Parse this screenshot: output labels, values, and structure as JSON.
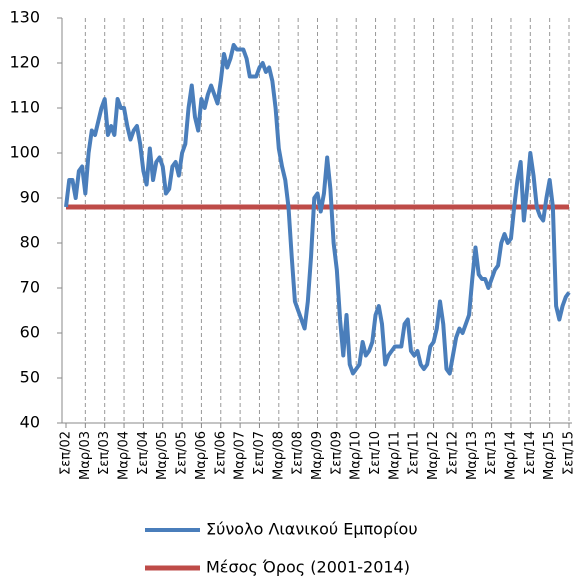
{
  "chart_data": {
    "type": "line",
    "categories": [
      "Σεπ/02",
      null,
      null,
      null,
      null,
      null,
      "Μαρ/03",
      null,
      null,
      null,
      null,
      null,
      "Σεπ/03",
      null,
      null,
      null,
      null,
      null,
      "Μαρ/04",
      null,
      null,
      null,
      null,
      null,
      "Σεπ/04",
      null,
      null,
      null,
      null,
      null,
      "Μαρ/05",
      null,
      null,
      null,
      null,
      null,
      "Σεπ/05",
      null,
      null,
      null,
      null,
      null,
      "Μαρ/06",
      null,
      null,
      null,
      null,
      null,
      "Σεπ/06",
      null,
      null,
      null,
      null,
      null,
      "Μαρ/07",
      null,
      null,
      null,
      null,
      null,
      "Σεπ/07",
      null,
      null,
      null,
      null,
      null,
      "Μαρ/08",
      null,
      null,
      null,
      null,
      null,
      "Σεπ/08",
      null,
      null,
      null,
      null,
      null,
      "Μαρ/09",
      null,
      null,
      null,
      null,
      null,
      "Σεπ/09",
      null,
      null,
      null,
      null,
      null,
      "Μαρ/10",
      null,
      null,
      null,
      null,
      null,
      "Σεπ/10",
      null,
      null,
      null,
      null,
      null,
      "Μαρ/11",
      null,
      null,
      null,
      null,
      null,
      "Σεπ/11",
      null,
      null,
      null,
      null,
      null,
      "Μαρ/12",
      null,
      null,
      null,
      null,
      null,
      "Σεπ/12",
      null,
      null,
      null,
      null,
      null,
      "Μαρ/13",
      null,
      null,
      null,
      null,
      null,
      "Σεπ/13",
      null,
      null,
      null,
      null,
      null,
      "Μαρ/14",
      null,
      null,
      null,
      null,
      null,
      "Σεπ/14",
      null,
      null,
      null,
      null,
      null,
      "Μαρ/15",
      null,
      null,
      null,
      null,
      null,
      "Σεπ/15"
    ],
    "series": [
      {
        "name": "Σύνολο Λιανικού Εμπορίου",
        "color": "#4a7ebb",
        "values": [
          88,
          94,
          94,
          90,
          96,
          97,
          91,
          100,
          105,
          104,
          107,
          110,
          112,
          104,
          106,
          104,
          112,
          110,
          110,
          106,
          103,
          105,
          106,
          102,
          96,
          93,
          101,
          94,
          98,
          99,
          97,
          91,
          92,
          97,
          98,
          95,
          100,
          102,
          110,
          115,
          108,
          105,
          112,
          110,
          113,
          115,
          113,
          111,
          116,
          122,
          119,
          121,
          124,
          123,
          123,
          123,
          121,
          117,
          117,
          117,
          119,
          120,
          118,
          119,
          116,
          110,
          101,
          97,
          94,
          88,
          77,
          67,
          65,
          63,
          61,
          67,
          77,
          90,
          91,
          87,
          91,
          99,
          92,
          80,
          74,
          63,
          55,
          64,
          53,
          51,
          52,
          53,
          58,
          55,
          56,
          58,
          64,
          66,
          62,
          53,
          55,
          56,
          57,
          57,
          57,
          62,
          63,
          56,
          55,
          56,
          53,
          52,
          53,
          57,
          58,
          61,
          67,
          62,
          52,
          51,
          55,
          59,
          61,
          60,
          62,
          64,
          72,
          79,
          73,
          72,
          72,
          70,
          72,
          74,
          75,
          80,
          82,
          80,
          81,
          88,
          94,
          98,
          85,
          92,
          100,
          95,
          88,
          86,
          85,
          90,
          94,
          88,
          66,
          63,
          66,
          68,
          69
        ]
      },
      {
        "name": "Μέσος Όρος (2001-2014)",
        "color": "#be4b48",
        "values": [
          88,
          88,
          88,
          88,
          88,
          88,
          88,
          88,
          88,
          88,
          88,
          88,
          88,
          88,
          88,
          88,
          88,
          88,
          88,
          88,
          88,
          88,
          88,
          88,
          88,
          88,
          88,
          88,
          88,
          88,
          88,
          88,
          88,
          88,
          88,
          88,
          88,
          88,
          88,
          88,
          88,
          88,
          88,
          88,
          88,
          88,
          88,
          88,
          88,
          88,
          88,
          88,
          88,
          88,
          88,
          88,
          88,
          88,
          88,
          88,
          88,
          88,
          88,
          88,
          88,
          88,
          88,
          88,
          88,
          88,
          88,
          88,
          88,
          88,
          88,
          88,
          88,
          88,
          88,
          88,
          88,
          88,
          88,
          88,
          88,
          88,
          88,
          88,
          88,
          88,
          88,
          88,
          88,
          88,
          88,
          88,
          88,
          88,
          88,
          88,
          88,
          88,
          88,
          88,
          88,
          88,
          88,
          88,
          88,
          88,
          88,
          88,
          88,
          88,
          88,
          88,
          88,
          88,
          88,
          88,
          88,
          88,
          88,
          88,
          88,
          88,
          88,
          88,
          88,
          88,
          88,
          88,
          88,
          88,
          88,
          88,
          88,
          88,
          88,
          88,
          88,
          88,
          88,
          88,
          88,
          88,
          88,
          88,
          88,
          88,
          88,
          88,
          88,
          88,
          88,
          88,
          88
        ]
      }
    ],
    "ylim": [
      40,
      130
    ],
    "yticks": [
      40,
      50,
      60,
      70,
      80,
      90,
      100,
      110,
      120,
      130
    ],
    "grid": true
  }
}
